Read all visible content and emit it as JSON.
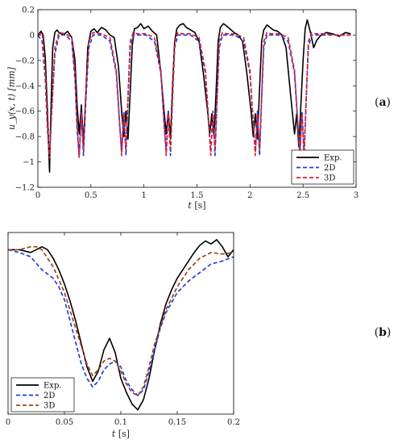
{
  "chart_data": [
    {
      "panel": "a",
      "panel_label_parts": [
        "(",
        "a",
        ")"
      ],
      "type": "line",
      "title": "",
      "xlabel_var": "t",
      "xlabel_unit": " [s]",
      "ylabel": "u_y(x, t) [mm]",
      "xlim": [
        0,
        3
      ],
      "ylim": [
        -1.2,
        0.2
      ],
      "xticks": [
        0,
        0.5,
        1,
        1.5,
        2,
        2.5,
        3
      ],
      "yticks": [
        0.2,
        0,
        -0.2,
        -0.4,
        -0.6,
        -0.8,
        -1,
        -1.2
      ],
      "xtick_labels": [
        "0",
        "0.5",
        "1",
        "1.5",
        "2",
        "2.5",
        "3"
      ],
      "ytick_labels": [
        "0.2",
        "0",
        "−0.2",
        "−0.4",
        "−0.6",
        "−0.8",
        "−1",
        "−1.2"
      ],
      "grid": false,
      "legend_position": "bottom-right",
      "series": [
        {
          "name": "Exp.",
          "color": "#000000",
          "style": "solid",
          "x": [
            0,
            0.03,
            0.05,
            0.07,
            0.09,
            0.1,
            0.11,
            0.12,
            0.14,
            0.16,
            0.18,
            0.2,
            0.24,
            0.28,
            0.32,
            0.35,
            0.37,
            0.39,
            0.41,
            0.43,
            0.45,
            0.47,
            0.5,
            0.53,
            0.56,
            0.6,
            0.64,
            0.68,
            0.72,
            0.76,
            0.79,
            0.81,
            0.83,
            0.85,
            0.87,
            0.89,
            0.91,
            0.94,
            0.97,
            1.0,
            1.04,
            1.08,
            1.12,
            1.16,
            1.19,
            1.21,
            1.23,
            1.25,
            1.27,
            1.29,
            1.31,
            1.34,
            1.37,
            1.4,
            1.44,
            1.48,
            1.52,
            1.56,
            1.6,
            1.62,
            1.64,
            1.66,
            1.68,
            1.7,
            1.72,
            1.75,
            1.78,
            1.81,
            1.85,
            1.89,
            1.93,
            1.97,
            2.01,
            2.03,
            2.05,
            2.07,
            2.09,
            2.11,
            2.13,
            2.16,
            2.19,
            2.22,
            2.26,
            2.3,
            2.34,
            2.38,
            2.42,
            2.44,
            2.46,
            2.48,
            2.5,
            2.52,
            2.54,
            2.57,
            2.6,
            2.63,
            2.67,
            2.72,
            2.78,
            2.84,
            2.9,
            2.95
          ],
          "y": [
            0.0,
            0.03,
            0.0,
            -0.18,
            -0.6,
            -0.85,
            -1.08,
            -0.7,
            -0.1,
            0.02,
            0.04,
            0.02,
            0.0,
            0.03,
            -0.02,
            -0.2,
            -0.55,
            -0.78,
            -0.55,
            -0.85,
            -0.5,
            -0.1,
            0.03,
            0.05,
            0.02,
            0.06,
            0.04,
            0.0,
            -0.02,
            -0.25,
            -0.6,
            -0.8,
            -0.6,
            -0.82,
            -0.45,
            -0.08,
            0.05,
            0.06,
            0.09,
            0.05,
            0.07,
            0.03,
            0.0,
            -0.3,
            -0.6,
            -0.78,
            -0.6,
            -0.82,
            -0.4,
            -0.05,
            0.05,
            0.08,
            0.09,
            0.06,
            0.04,
            0.02,
            -0.05,
            -0.3,
            -0.6,
            -0.78,
            -0.62,
            -0.8,
            -0.45,
            -0.05,
            0.06,
            0.09,
            0.07,
            0.05,
            0.02,
            0.0,
            -0.05,
            -0.3,
            -0.6,
            -0.8,
            -0.62,
            -0.82,
            -0.42,
            -0.05,
            0.04,
            0.08,
            0.06,
            0.04,
            0.03,
            0.0,
            -0.1,
            -0.45,
            -0.78,
            -0.62,
            -0.88,
            -0.55,
            -0.2,
            0.05,
            0.12,
            0.02,
            -0.1,
            -0.04,
            0.0,
            0.02,
            0.01,
            -0.01,
            0.02,
            0.01
          ]
        },
        {
          "name": "2D",
          "color": "#1f3fe0",
          "style": "dashed",
          "x": [
            0,
            0.04,
            0.07,
            0.09,
            0.11,
            0.13,
            0.16,
            0.2,
            0.26,
            0.32,
            0.35,
            0.37,
            0.39,
            0.41,
            0.43,
            0.45,
            0.48,
            0.52,
            0.6,
            0.68,
            0.74,
            0.77,
            0.79,
            0.81,
            0.83,
            0.85,
            0.87,
            0.9,
            0.94,
            1.02,
            1.1,
            1.16,
            1.19,
            1.21,
            1.23,
            1.25,
            1.27,
            1.29,
            1.32,
            1.36,
            1.44,
            1.52,
            1.58,
            1.61,
            1.63,
            1.65,
            1.67,
            1.69,
            1.71,
            1.74,
            1.78,
            1.86,
            1.94,
            2.0,
            2.03,
            2.05,
            2.07,
            2.09,
            2.11,
            2.13,
            2.16,
            2.2,
            2.28,
            2.36,
            2.42,
            2.45,
            2.47,
            2.49,
            2.51,
            2.53,
            2.55,
            2.58,
            2.62,
            2.7,
            2.8,
            2.95
          ],
          "y": [
            0.0,
            -0.05,
            -0.35,
            -0.75,
            -0.95,
            -0.6,
            -0.15,
            0.0,
            0.0,
            -0.05,
            -0.35,
            -0.75,
            -0.95,
            -0.6,
            -0.95,
            -0.55,
            -0.1,
            0.0,
            0.0,
            -0.05,
            -0.3,
            -0.7,
            -0.92,
            -0.6,
            -0.95,
            -0.5,
            -0.1,
            0.0,
            0.0,
            0.0,
            -0.05,
            -0.3,
            -0.7,
            -0.92,
            -0.6,
            -0.95,
            -0.5,
            -0.1,
            0.0,
            0.0,
            0.0,
            -0.05,
            -0.3,
            -0.7,
            -0.92,
            -0.6,
            -0.95,
            -0.5,
            -0.1,
            0.0,
            0.0,
            0.0,
            -0.05,
            -0.3,
            -0.7,
            -0.92,
            -0.6,
            -0.95,
            -0.5,
            -0.1,
            0.0,
            0.0,
            0.0,
            -0.05,
            -0.3,
            -0.7,
            -0.92,
            -0.6,
            -0.95,
            -0.5,
            -0.1,
            0.0,
            0.0,
            0.0,
            0.0,
            0.0
          ]
        },
        {
          "name": "3D",
          "color": "#e01f2a",
          "style": "dashed",
          "x": [
            0,
            0.04,
            0.07,
            0.09,
            0.11,
            0.13,
            0.16,
            0.2,
            0.26,
            0.32,
            0.35,
            0.37,
            0.39,
            0.41,
            0.43,
            0.45,
            0.48,
            0.52,
            0.6,
            0.68,
            0.74,
            0.77,
            0.79,
            0.81,
            0.83,
            0.85,
            0.87,
            0.9,
            0.94,
            1.02,
            1.1,
            1.16,
            1.19,
            1.21,
            1.23,
            1.25,
            1.27,
            1.29,
            1.32,
            1.36,
            1.44,
            1.52,
            1.58,
            1.61,
            1.63,
            1.65,
            1.67,
            1.69,
            1.71,
            1.74,
            1.78,
            1.86,
            1.94,
            2.0,
            2.03,
            2.05,
            2.07,
            2.09,
            2.11,
            2.13,
            2.16,
            2.2,
            2.28,
            2.36,
            2.42,
            2.45,
            2.47,
            2.49,
            2.51,
            2.53,
            2.55,
            2.58,
            2.62,
            2.7,
            2.8,
            2.95
          ],
          "y": [
            0.0,
            0.02,
            -0.3,
            -0.7,
            -0.97,
            -0.62,
            -0.1,
            0.02,
            0.01,
            -0.02,
            -0.3,
            -0.7,
            -0.97,
            -0.62,
            -0.9,
            -0.5,
            -0.05,
            0.02,
            0.01,
            -0.02,
            -0.28,
            -0.68,
            -0.95,
            -0.62,
            -0.9,
            -0.48,
            -0.05,
            0.02,
            0.01,
            0.01,
            -0.02,
            -0.28,
            -0.68,
            -0.95,
            -0.62,
            -0.9,
            -0.48,
            -0.05,
            0.02,
            0.01,
            0.01,
            -0.02,
            -0.28,
            -0.68,
            -0.95,
            -0.62,
            -0.9,
            -0.48,
            -0.05,
            0.02,
            0.01,
            0.01,
            -0.02,
            -0.28,
            -0.68,
            -0.95,
            -0.62,
            -0.9,
            -0.48,
            -0.05,
            0.02,
            0.01,
            0.01,
            -0.02,
            -0.28,
            -0.68,
            -0.95,
            -0.62,
            -0.95,
            -0.5,
            -0.05,
            0.02,
            0.01,
            0.01,
            0.0,
            0.0
          ]
        }
      ]
    },
    {
      "panel": "b",
      "panel_label_parts": [
        "(",
        "b",
        ")"
      ],
      "type": "line",
      "title": "",
      "xlabel_var": "t",
      "xlabel_unit": " [s]",
      "ylabel": "",
      "xlim": [
        0,
        0.2
      ],
      "ylim": [
        -1.15,
        0.12
      ],
      "xticks": [
        0,
        0.05,
        0.1,
        0.15,
        0.2
      ],
      "xtick_labels": [
        "0",
        "0.05",
        "0.1",
        "0.15",
        "0.2"
      ],
      "grid": false,
      "legend_position": "bottom-left",
      "series": [
        {
          "name": "Exp.",
          "color": "#000000",
          "style": "solid",
          "x": [
            0,
            0.01,
            0.02,
            0.025,
            0.03,
            0.035,
            0.04,
            0.045,
            0.05,
            0.055,
            0.06,
            0.065,
            0.07,
            0.075,
            0.08,
            0.085,
            0.09,
            0.095,
            0.1,
            0.105,
            0.11,
            0.115,
            0.12,
            0.125,
            0.13,
            0.135,
            0.14,
            0.145,
            0.15,
            0.155,
            0.16,
            0.165,
            0.17,
            0.175,
            0.18,
            0.185,
            0.19,
            0.195,
            0.2
          ],
          "y": [
            0.0,
            0.0,
            -0.02,
            0.0,
            0.02,
            0.0,
            -0.06,
            -0.14,
            -0.24,
            -0.36,
            -0.5,
            -0.66,
            -0.82,
            -0.92,
            -0.85,
            -0.7,
            -0.62,
            -0.72,
            -0.9,
            -1.0,
            -1.08,
            -1.12,
            -1.05,
            -0.9,
            -0.7,
            -0.52,
            -0.38,
            -0.28,
            -0.2,
            -0.14,
            -0.08,
            -0.02,
            0.03,
            0.06,
            0.04,
            0.07,
            0.02,
            -0.05,
            0.0
          ]
        },
        {
          "name": "2D",
          "color": "#1f3fe0",
          "style": "dashed",
          "x": [
            0,
            0.01,
            0.02,
            0.03,
            0.04,
            0.045,
            0.05,
            0.055,
            0.06,
            0.065,
            0.07,
            0.075,
            0.08,
            0.085,
            0.09,
            0.095,
            0.1,
            0.105,
            0.11,
            0.115,
            0.12,
            0.125,
            0.13,
            0.135,
            0.14,
            0.15,
            0.16,
            0.17,
            0.18,
            0.19,
            0.2
          ],
          "y": [
            0.0,
            -0.02,
            -0.05,
            -0.14,
            -0.2,
            -0.26,
            -0.35,
            -0.5,
            -0.65,
            -0.8,
            -0.9,
            -0.96,
            -0.92,
            -0.84,
            -0.8,
            -0.78,
            -0.82,
            -0.92,
            -0.98,
            -1.02,
            -0.98,
            -0.85,
            -0.7,
            -0.55,
            -0.44,
            -0.3,
            -0.22,
            -0.16,
            -0.1,
            -0.08,
            -0.05
          ]
        },
        {
          "name": "3D",
          "color": "#a0401a",
          "style": "dashed",
          "x": [
            0,
            0.01,
            0.02,
            0.025,
            0.03,
            0.04,
            0.05,
            0.06,
            0.07,
            0.075,
            0.08,
            0.085,
            0.09,
            0.095,
            0.1,
            0.105,
            0.11,
            0.115,
            0.12,
            0.125,
            0.13,
            0.14,
            0.15,
            0.16,
            0.17,
            0.18,
            0.19,
            0.2
          ],
          "y": [
            0.0,
            0.0,
            0.02,
            0.02,
            0.0,
            -0.12,
            -0.3,
            -0.55,
            -0.8,
            -0.88,
            -0.84,
            -0.78,
            -0.76,
            -0.78,
            -0.85,
            -0.94,
            -1.0,
            -1.02,
            -0.96,
            -0.82,
            -0.66,
            -0.42,
            -0.26,
            -0.14,
            -0.06,
            -0.02,
            -0.03,
            -0.02
          ]
        }
      ]
    }
  ]
}
